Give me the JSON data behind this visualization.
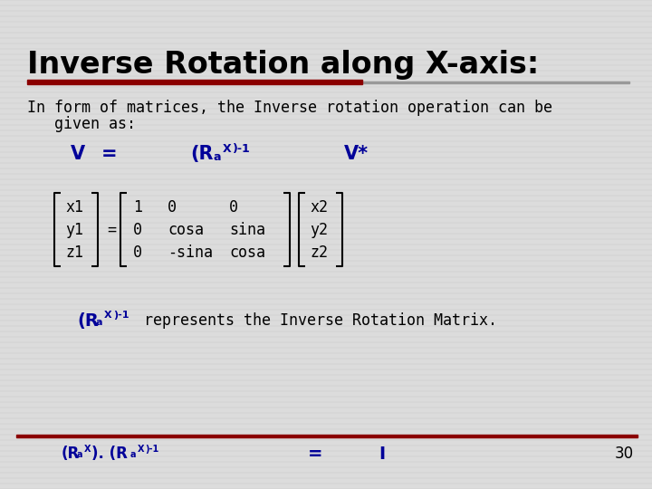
{
  "title": "Inverse Rotation along X-axis:",
  "title_fontsize": 24,
  "title_color": "#000000",
  "bg_color": "#dcdcdc",
  "red_bar_color": "#8b0000",
  "body_text1": "In form of matrices, the Inverse rotation operation can be",
  "body_text2": "   given as:",
  "body_fontsize": 12,
  "body_color": "#000000",
  "blue_color": "#000099",
  "matrix_left": [
    "x1",
    "y1",
    "z1"
  ],
  "matrix_mid": [
    [
      "1",
      "0",
      "0"
    ],
    [
      "0",
      "cosa",
      "sina"
    ],
    [
      "0",
      "-sina",
      "cosa"
    ]
  ],
  "matrix_right": [
    "x2",
    "y2",
    "z2"
  ],
  "page_num": "30",
  "mono_font": "monospace"
}
